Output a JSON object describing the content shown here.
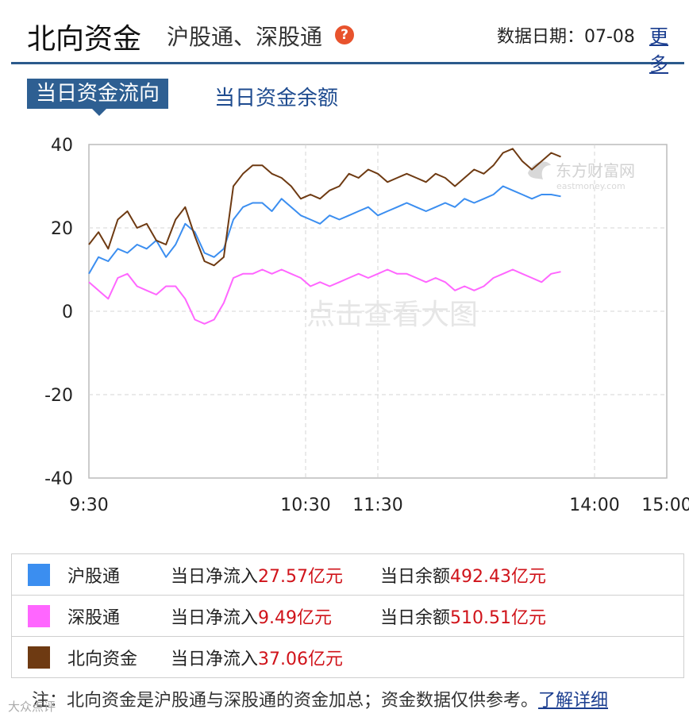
{
  "header": {
    "title": "北向资金",
    "subtitle": "沪股通、深股通",
    "help_icon": "question-circle-icon",
    "date_label": "数据日期：07-08",
    "more_link": "更多"
  },
  "tabs": [
    {
      "label": "当日资金流向",
      "active": true
    },
    {
      "label": "当日资金余额",
      "active": false
    }
  ],
  "watermark": {
    "logo_text": "东方财富网",
    "logo_sub": "eastmoney.com",
    "center_text": "点击查看大图"
  },
  "chart_data": {
    "type": "line",
    "x_ticks": [
      "9:30",
      "10:30",
      "11:30",
      "14:00",
      "15:00"
    ],
    "ylim": [
      -40,
      40
    ],
    "y_ticks": [
      40,
      20,
      0,
      -20,
      -40
    ],
    "grid": true,
    "x_unit": "minutes since 9:30",
    "series": [
      {
        "name": "沪股通",
        "color": "#3b8ef0",
        "points": [
          [
            0,
            9
          ],
          [
            4,
            13
          ],
          [
            8,
            12
          ],
          [
            12,
            15
          ],
          [
            16,
            14
          ],
          [
            20,
            16
          ],
          [
            24,
            15
          ],
          [
            28,
            17
          ],
          [
            32,
            13
          ],
          [
            36,
            16
          ],
          [
            40,
            21
          ],
          [
            44,
            19
          ],
          [
            48,
            14
          ],
          [
            52,
            13
          ],
          [
            56,
            15
          ],
          [
            60,
            22
          ],
          [
            64,
            25
          ],
          [
            68,
            26
          ],
          [
            72,
            26
          ],
          [
            76,
            24
          ],
          [
            80,
            27
          ],
          [
            84,
            25
          ],
          [
            88,
            23
          ],
          [
            92,
            22
          ],
          [
            96,
            21
          ],
          [
            100,
            23
          ],
          [
            104,
            22
          ],
          [
            108,
            23
          ],
          [
            112,
            24
          ],
          [
            116,
            25
          ],
          [
            120,
            23
          ],
          [
            124,
            24
          ],
          [
            128,
            25
          ],
          [
            132,
            26
          ],
          [
            136,
            25
          ],
          [
            140,
            24
          ],
          [
            144,
            25
          ],
          [
            148,
            26
          ],
          [
            152,
            25
          ],
          [
            156,
            27
          ],
          [
            160,
            26
          ],
          [
            164,
            27
          ],
          [
            168,
            28
          ],
          [
            172,
            30
          ],
          [
            176,
            29
          ],
          [
            180,
            28
          ],
          [
            184,
            27
          ],
          [
            188,
            28
          ],
          [
            192,
            28
          ],
          [
            196,
            27.57
          ]
        ]
      },
      {
        "name": "深股通",
        "color": "#ff66ff",
        "points": [
          [
            0,
            7
          ],
          [
            4,
            5
          ],
          [
            8,
            3
          ],
          [
            12,
            8
          ],
          [
            16,
            9
          ],
          [
            20,
            6
          ],
          [
            24,
            5
          ],
          [
            28,
            4
          ],
          [
            32,
            6
          ],
          [
            36,
            6
          ],
          [
            40,
            3
          ],
          [
            44,
            -2
          ],
          [
            48,
            -3
          ],
          [
            52,
            -2
          ],
          [
            56,
            2
          ],
          [
            60,
            8
          ],
          [
            64,
            9
          ],
          [
            68,
            9
          ],
          [
            72,
            10
          ],
          [
            76,
            9
          ],
          [
            80,
            10
          ],
          [
            84,
            9
          ],
          [
            88,
            8
          ],
          [
            92,
            6
          ],
          [
            96,
            7
          ],
          [
            100,
            6
          ],
          [
            104,
            7
          ],
          [
            108,
            8
          ],
          [
            112,
            9
          ],
          [
            116,
            8
          ],
          [
            120,
            9
          ],
          [
            124,
            10
          ],
          [
            128,
            9
          ],
          [
            132,
            9
          ],
          [
            136,
            8
          ],
          [
            140,
            7
          ],
          [
            144,
            8
          ],
          [
            148,
            7
          ],
          [
            152,
            5
          ],
          [
            156,
            6
          ],
          [
            160,
            5
          ],
          [
            164,
            6
          ],
          [
            168,
            8
          ],
          [
            172,
            9
          ],
          [
            176,
            10
          ],
          [
            180,
            9
          ],
          [
            184,
            8
          ],
          [
            188,
            7
          ],
          [
            192,
            9
          ],
          [
            196,
            9.49
          ]
        ]
      },
      {
        "name": "北向资金",
        "color": "#6e3a12",
        "points": [
          [
            0,
            16
          ],
          [
            4,
            19
          ],
          [
            8,
            15
          ],
          [
            12,
            22
          ],
          [
            16,
            24
          ],
          [
            20,
            20
          ],
          [
            24,
            21
          ],
          [
            28,
            17
          ],
          [
            32,
            16
          ],
          [
            36,
            22
          ],
          [
            40,
            25
          ],
          [
            44,
            18
          ],
          [
            48,
            12
          ],
          [
            52,
            11
          ],
          [
            56,
            13
          ],
          [
            60,
            30
          ],
          [
            64,
            33
          ],
          [
            68,
            35
          ],
          [
            72,
            35
          ],
          [
            76,
            33
          ],
          [
            80,
            32
          ],
          [
            84,
            30
          ],
          [
            88,
            27
          ],
          [
            92,
            28
          ],
          [
            96,
            27
          ],
          [
            100,
            29
          ],
          [
            104,
            30
          ],
          [
            108,
            33
          ],
          [
            112,
            32
          ],
          [
            116,
            34
          ],
          [
            120,
            33
          ],
          [
            124,
            31
          ],
          [
            128,
            32
          ],
          [
            132,
            33
          ],
          [
            136,
            32
          ],
          [
            140,
            31
          ],
          [
            144,
            33
          ],
          [
            148,
            32
          ],
          [
            152,
            30
          ],
          [
            156,
            32
          ],
          [
            160,
            34
          ],
          [
            164,
            33
          ],
          [
            168,
            35
          ],
          [
            172,
            38
          ],
          [
            176,
            39
          ],
          [
            180,
            36
          ],
          [
            184,
            34
          ],
          [
            188,
            36
          ],
          [
            192,
            38
          ],
          [
            196,
            37.06
          ]
        ]
      }
    ]
  },
  "legend": [
    {
      "name": "沪股通",
      "color": "#3b8ef0",
      "flow_label": "当日净流入",
      "flow_value": "27.57亿元",
      "balance_label": "当日余额",
      "balance_value": "492.43亿元"
    },
    {
      "name": "深股通",
      "color": "#ff66ff",
      "flow_label": "当日净流入",
      "flow_value": "9.49亿元",
      "balance_label": "当日余额",
      "balance_value": "510.51亿元"
    },
    {
      "name": "北向资金",
      "color": "#6e3a12",
      "flow_label": "当日净流入",
      "flow_value": "37.06亿元",
      "balance_label": "",
      "balance_value": ""
    }
  ],
  "note": {
    "text": "注：北向资金是沪股通与深股通的资金加总；资金数据仅供参考。",
    "link": "了解详细"
  },
  "corner_watermark": "大众点评"
}
